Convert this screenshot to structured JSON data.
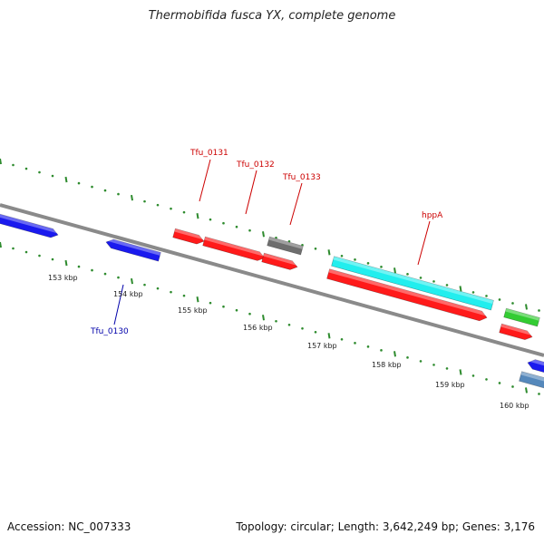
{
  "title": "Thermobifida fusca YX, complete genome",
  "footer": {
    "accession": "Accession: NC_007333",
    "stats": "Topology: circular; Length: 3,642,249 bp; Genes: 3,176"
  },
  "colors": {
    "backbone": "#8a8a8a",
    "tick_dot": "#2e8b2e",
    "label_red": "#cc0000",
    "label_blue": "#0000aa",
    "red_gene": "#ff1a1a",
    "blue_gene": "#1a1aee",
    "cyan_gene": "#22eeee",
    "grey_gene": "#6e6e6e",
    "green_gene": "#33cc33",
    "steel_gene": "#5588bb"
  },
  "tick_labels": [
    "153 kbp",
    "154 kbp",
    "155 kbp",
    "156 kbp",
    "157 kbp",
    "158 kbp",
    "159 kbp",
    "160 kbp"
  ],
  "gene_labels": [
    {
      "name": "Tfu_0130",
      "color": "blue"
    },
    {
      "name": "Tfu_0131",
      "color": "red"
    },
    {
      "name": "Tfu_0132",
      "color": "red"
    },
    {
      "name": "Tfu_0133",
      "color": "red"
    },
    {
      "name": "hppA",
      "color": "red"
    }
  ]
}
